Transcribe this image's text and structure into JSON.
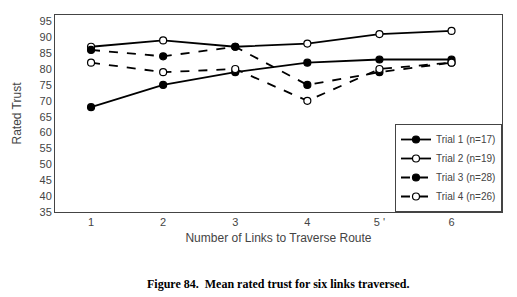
{
  "chart_data": {
    "type": "line",
    "x": [
      1,
      2,
      3,
      4,
      5,
      6
    ],
    "series": [
      {
        "name": "Trial 1 (n=17)",
        "color": "black",
        "marker": "filled",
        "line_style": "solid",
        "values": [
          68,
          75,
          79,
          82,
          83,
          83
        ]
      },
      {
        "name": "Trial 2 (n=19)",
        "color": "black",
        "marker": "open",
        "line_style": "solid",
        "values": [
          87,
          89,
          87,
          88,
          91,
          92
        ]
      },
      {
        "name": "Trial 3 (n=28)",
        "color": "black",
        "marker": "filled",
        "line_style": "dashed",
        "values": [
          86,
          84,
          87,
          75,
          79,
          82
        ]
      },
      {
        "name": "Trial 4 (n=26)",
        "color": "black",
        "marker": "open",
        "line_style": "dashed",
        "values": [
          82,
          79,
          80,
          70,
          80,
          82
        ]
      }
    ],
    "xlabel": "Number of Links to Traverse Route",
    "ylabel": "Rated Trust",
    "annotations": [
      "Figure 84.  Mean rated trust for six links traversed."
    ],
    "xlim": [
      0.5,
      6.7
    ],
    "xticks": [
      1,
      2,
      3,
      4,
      {
        "value": 5,
        "label": "5 '"
      },
      6
    ],
    "ylim": [
      35,
      97
    ],
    "yticks": [
      35,
      40,
      45,
      50,
      55,
      60,
      65,
      70,
      75,
      80,
      85,
      90,
      95
    ],
    "grid": false,
    "legend": "lower right"
  }
}
